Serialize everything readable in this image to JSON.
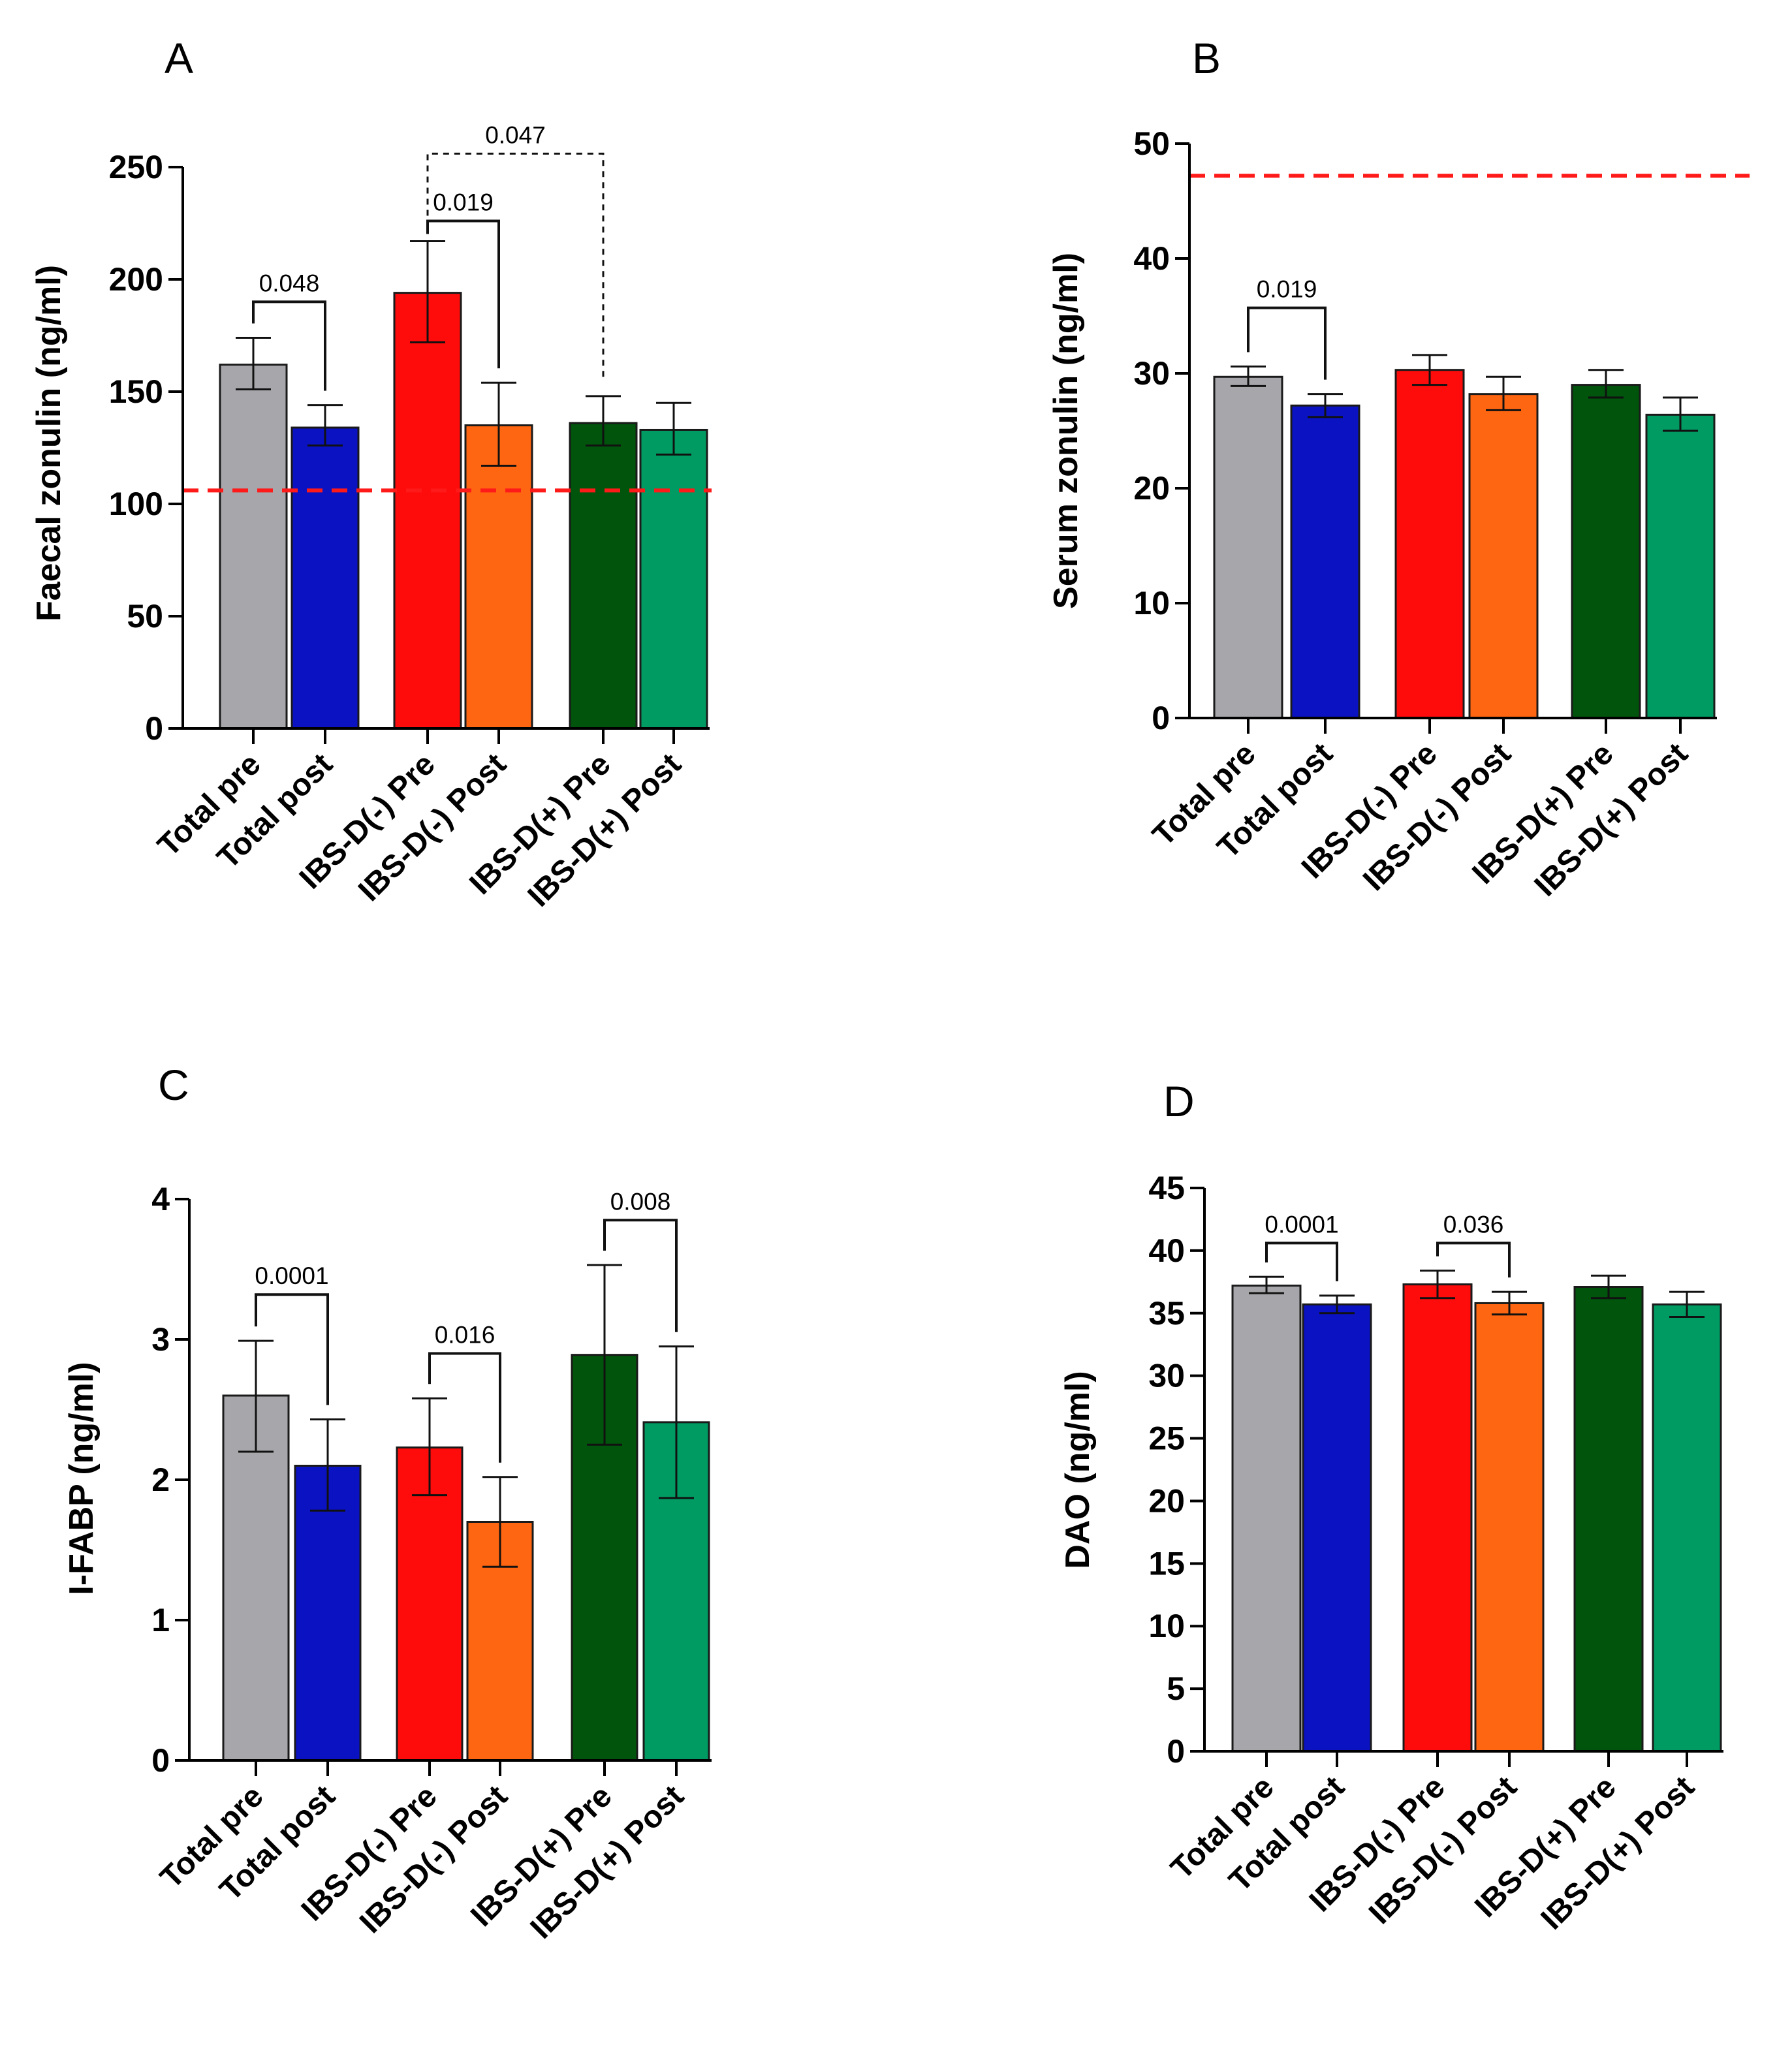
{
  "colors": {
    "total_pre": "#a7a6ab",
    "total_post": "#0a12c2",
    "ibs_neg_pre": "#fd0c0b",
    "ibs_neg_post": "#ff6611",
    "ibs_pos_pre": "#00540c",
    "ibs_pos_post": "#009b63",
    "reference_line": "#ff1a1a"
  },
  "categories": [
    "Total pre",
    "Total post",
    "IBS-D(-) Pre",
    "IBS-D(-) Post",
    "IBS-D(+) Pre",
    "IBS-D(+) Post"
  ],
  "chart_data": [
    {
      "panel": "A",
      "type": "bar",
      "title": "",
      "ylabel": "Faecal zonulin (ng/ml)",
      "xlabel": "",
      "ylim": [
        0,
        250
      ],
      "yticks": [
        0,
        50,
        100,
        150,
        200,
        250
      ],
      "tick_labels": [
        "0",
        "50",
        "100",
        "150",
        "200",
        "250"
      ],
      "values": [
        162,
        134,
        194,
        135,
        136,
        133
      ],
      "error_low": [
        151,
        126,
        172,
        117,
        126,
        122
      ],
      "error_high": [
        174,
        144,
        217,
        154,
        148,
        145
      ],
      "reference_line": 106,
      "comparisons": [
        {
          "from": 0,
          "to": 1,
          "label": "0.048",
          "y": 190,
          "style": "solid"
        },
        {
          "from": 2,
          "to": 3,
          "label": "0.019",
          "y": 226,
          "style": "solid"
        },
        {
          "from": 2,
          "to": 4,
          "label": "0.047",
          "y": 256,
          "style": "dashed"
        }
      ]
    },
    {
      "panel": "B",
      "type": "bar",
      "title": "",
      "ylabel": "Serum zonulin (ng/ml)",
      "xlabel": "",
      "ylim": [
        0,
        50
      ],
      "yticks": [
        0,
        10,
        20,
        30,
        40,
        50
      ],
      "tick_labels": [
        "0",
        "10",
        "20",
        "30",
        "40",
        "50"
      ],
      "values": [
        29.7,
        27.2,
        30.3,
        28.2,
        29.0,
        26.4
      ],
      "error_low": [
        28.9,
        26.2,
        29.0,
        26.8,
        27.9,
        25.0
      ],
      "error_high": [
        30.6,
        28.2,
        31.6,
        29.7,
        30.3,
        27.9
      ],
      "reference_line": 47.2,
      "comparisons": [
        {
          "from": 0,
          "to": 1,
          "label": "0.019",
          "y": 35.7,
          "style": "solid"
        }
      ]
    },
    {
      "panel": "C",
      "type": "bar",
      "title": "",
      "ylabel": "I-FABP (ng/ml)",
      "xlabel": "",
      "ylim": [
        0,
        4
      ],
      "yticks": [
        0,
        1,
        2,
        3,
        4
      ],
      "tick_labels": [
        "0",
        "1",
        "2",
        "3",
        "4"
      ],
      "values": [
        2.6,
        2.1,
        2.23,
        1.7,
        2.89,
        2.41
      ],
      "error_low": [
        2.2,
        1.78,
        1.89,
        1.38,
        2.25,
        1.87
      ],
      "error_high": [
        2.99,
        2.43,
        2.58,
        2.02,
        3.53,
        2.95
      ],
      "reference_line": null,
      "comparisons": [
        {
          "from": 0,
          "to": 1,
          "label": "0.0001",
          "y": 3.32,
          "style": "solid"
        },
        {
          "from": 2,
          "to": 3,
          "label": "0.016",
          "y": 2.9,
          "style": "solid"
        },
        {
          "from": 4,
          "to": 5,
          "label": "0.008",
          "y": 3.85,
          "style": "solid"
        }
      ]
    },
    {
      "panel": "D",
      "type": "bar",
      "title": "",
      "ylabel": "DAO (ng/ml)",
      "xlabel": "",
      "ylim": [
        0,
        45
      ],
      "yticks": [
        0,
        5,
        10,
        15,
        20,
        25,
        30,
        35,
        40,
        45
      ],
      "tick_labels": [
        "0",
        "5",
        "10",
        "15",
        "20",
        "25",
        "30",
        "35",
        "40",
        "45"
      ],
      "values": [
        37.2,
        35.7,
        37.3,
        35.8,
        37.1,
        35.7
      ],
      "error_low": [
        36.6,
        35.0,
        36.2,
        34.9,
        36.2,
        34.7
      ],
      "error_high": [
        37.9,
        36.4,
        38.4,
        36.7,
        38.0,
        36.7
      ],
      "reference_line": null,
      "comparisons": [
        {
          "from": 0,
          "to": 1,
          "label": "0.0001",
          "y": 40.6,
          "style": "solid"
        },
        {
          "from": 2,
          "to": 3,
          "label": "0.036",
          "y": 40.6,
          "style": "solid"
        }
      ]
    }
  ]
}
